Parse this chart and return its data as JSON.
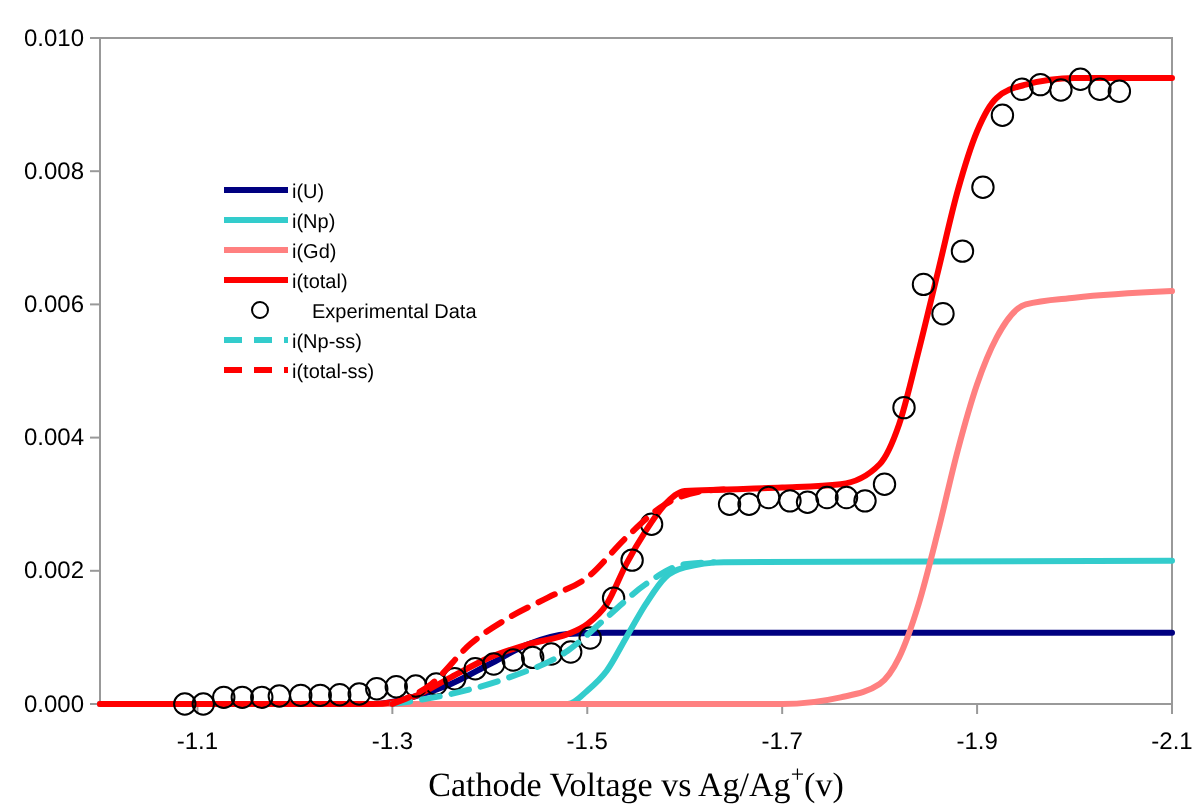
{
  "chart_data": {
    "type": "line",
    "xlabel": "Cathode Voltage vs Ag/Ag$^{+}$(v)",
    "xlim": [
      -1.0,
      -2.1
    ],
    "xticks": [
      -1.1,
      -1.3,
      -1.5,
      -1.7,
      -1.9,
      -2.1
    ],
    "ylim": [
      0,
      0.01
    ],
    "yticks": [
      {
        "value": 0,
        "label": "0.000"
      },
      {
        "value": 0.002,
        "label": "0.002"
      },
      {
        "value": 0.004,
        "label": "0.004"
      },
      {
        "value": 0.006,
        "label": "0.006"
      },
      {
        "value": 0.008,
        "label": "0.008"
      },
      {
        "value": 0.01,
        "label": "0.010"
      }
    ],
    "grid": false,
    "legend": "left",
    "series": [
      {
        "name": "i(U)",
        "color": "#000080",
        "line_style": "solid",
        "marker": "none",
        "x": [
          -1.0,
          -1.28,
          -1.32,
          -1.36,
          -1.4,
          -1.44,
          -1.48,
          -1.52,
          -2.1
        ],
        "values": [
          0,
          0,
          0.0001,
          0.0003,
          0.0006,
          0.0009,
          0.00105,
          0.00107,
          0.00107
        ]
      },
      {
        "name": "i(Np)",
        "color": "#33cccc",
        "line_style": "solid",
        "marker": "none",
        "x": [
          -1.0,
          -1.44,
          -1.48,
          -1.5,
          -1.52,
          -1.54,
          -1.56,
          -1.58,
          -1.6,
          -1.64,
          -2.1
        ],
        "values": [
          0,
          0,
          0,
          0.0002,
          0.0005,
          0.001,
          0.0015,
          0.0019,
          0.00205,
          0.00213,
          0.00215
        ]
      },
      {
        "name": "i(Gd)",
        "color": "#ff8080",
        "line_style": "solid",
        "marker": "none",
        "x": [
          -1.0,
          -1.7,
          -1.76,
          -1.8,
          -1.82,
          -1.84,
          -1.86,
          -1.88,
          -1.9,
          -1.92,
          -1.95,
          -2.0,
          -2.1
        ],
        "values": [
          0,
          0,
          0.0001,
          0.0003,
          0.0007,
          0.0015,
          0.0026,
          0.0038,
          0.0048,
          0.0055,
          0.006,
          0.0061,
          0.0062
        ]
      },
      {
        "name": "i(total)",
        "color": "#ff0000",
        "line_style": "solid",
        "marker": "none",
        "x": [
          -1.0,
          -1.28,
          -1.32,
          -1.36,
          -1.4,
          -1.44,
          -1.48,
          -1.5,
          -1.52,
          -1.54,
          -1.56,
          -1.58,
          -1.6,
          -1.64,
          -1.7,
          -1.76,
          -1.8,
          -1.82,
          -1.84,
          -1.86,
          -1.88,
          -1.9,
          -1.92,
          -1.95,
          -2.0,
          -2.1
        ],
        "values": [
          0,
          0,
          0.0001,
          0.0004,
          0.0007,
          0.0009,
          0.00105,
          0.0012,
          0.0015,
          0.0021,
          0.0026,
          0.003,
          0.0032,
          0.00322,
          0.00325,
          0.0033,
          0.0036,
          0.0042,
          0.0053,
          0.0065,
          0.0077,
          0.0086,
          0.0091,
          0.0093,
          0.0094,
          0.0094
        ]
      },
      {
        "name": "Experimental Data",
        "type": "scatter",
        "color": "#000000",
        "marker": "circle",
        "x": [
          -1.087,
          -1.106,
          -1.127,
          -1.146,
          -1.166,
          -1.184,
          -1.206,
          -1.226,
          -1.246,
          -1.266,
          -1.284,
          -1.304,
          -1.324,
          -1.345,
          -1.364,
          -1.385,
          -1.404,
          -1.424,
          -1.444,
          -1.463,
          -1.483,
          -1.503,
          -1.527,
          -1.546,
          -1.566,
          -1.646,
          -1.666,
          -1.686,
          -1.708,
          -1.726,
          -1.746,
          -1.766,
          -1.785,
          -1.805,
          -1.825,
          -1.845,
          -1.865,
          -1.885,
          -1.906,
          -1.926,
          -1.946,
          -1.965,
          -1.986,
          -2.006,
          -2.026,
          -2.046
        ],
        "values": [
          0,
          0,
          0.0001,
          0.0001,
          0.0001,
          0.00012,
          0.00013,
          0.00013,
          0.00014,
          0.00015,
          0.00023,
          0.00026,
          0.00027,
          0.0003,
          0.00038,
          0.00053,
          0.0006,
          0.00066,
          0.0007,
          0.00075,
          0.00078,
          0.00099,
          0.00159,
          0.00216,
          0.0027,
          0.003,
          0.003,
          0.0031,
          0.00305,
          0.00303,
          0.0031,
          0.0031,
          0.00305,
          0.0033,
          0.00445,
          0.0063,
          0.00586,
          0.0068,
          0.00776,
          0.00884,
          0.00923,
          0.0093,
          0.00922,
          0.00938,
          0.00923,
          0.0092
        ]
      },
      {
        "name": "i(Np-ss)",
        "color": "#33cccc",
        "line_style": "dashed",
        "marker": "none",
        "x": [
          -1.3,
          -1.36,
          -1.42,
          -1.48,
          -1.52,
          -1.56,
          -1.6,
          -1.63
        ],
        "values": [
          0,
          0.00015,
          0.0004,
          0.0008,
          0.0013,
          0.0018,
          0.0021,
          0.00213
        ]
      },
      {
        "name": "i(total-ss)",
        "color": "#ff0000",
        "line_style": "dashed",
        "marker": "none",
        "x": [
          -1.3,
          -1.34,
          -1.38,
          -1.42,
          -1.46,
          -1.5,
          -1.54,
          -1.58,
          -1.62,
          -1.64
        ],
        "values": [
          0,
          0.0003,
          0.0009,
          0.0013,
          0.0016,
          0.0019,
          0.0025,
          0.003,
          0.0032,
          0.00322
        ]
      }
    ]
  }
}
